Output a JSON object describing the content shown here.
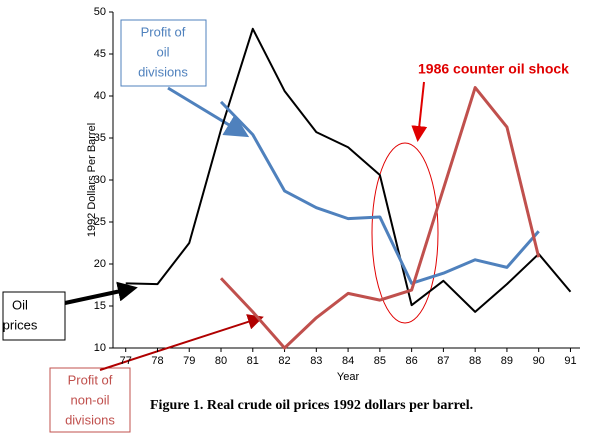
{
  "chart_data": {
    "type": "line",
    "y_label": "1992 Dollars Per Barrel",
    "x_label": "Year",
    "caption": "Figure 1. Real crude oil prices 1992 dollars per barrel.",
    "xlim": [
      76.6,
      91.3
    ],
    "xticks": [
      77,
      78,
      79,
      80,
      81,
      82,
      83,
      84,
      85,
      86,
      87,
      88,
      89,
      90,
      91
    ],
    "ylim": [
      10,
      50
    ],
    "yticks": [
      10,
      15,
      20,
      25,
      30,
      35,
      40,
      45,
      50
    ],
    "series": [
      {
        "color": "#000000",
        "x": [
          77,
          78,
          79,
          80,
          81,
          82,
          83,
          84,
          85,
          86,
          87,
          88,
          89,
          90,
          91
        ],
        "values": [
          17.7,
          17.6,
          22.5,
          36,
          48,
          40.6,
          35.7,
          33.9,
          30.6,
          15.1,
          18,
          14.3,
          17.6,
          21.2,
          16.7
        ]
      },
      {
        "color": "#4f81bd",
        "x": [
          80,
          81,
          82,
          83,
          84,
          85,
          86,
          87,
          88,
          89,
          90
        ],
        "values": [
          39.3,
          35.4,
          28.7,
          26.7,
          25.4,
          25.6,
          17.7,
          18.9,
          20.5,
          19.6,
          23.9
        ]
      },
      {
        "color": "#c0504d",
        "x": [
          80,
          81,
          82,
          83,
          84,
          85,
          86,
          88,
          89,
          90
        ],
        "values": [
          18.3,
          14.3,
          10,
          13.6,
          16.5,
          15.7,
          16.9,
          41,
          36.3,
          20.8
        ]
      }
    ],
    "annotations": {
      "oil_divisions": [
        "Profit of",
        "oil",
        "divisions"
      ],
      "counter_shock": "1986 counter oil shock",
      "oil_prices": [
        "Oil",
        "prices"
      ],
      "non_oil_divisions": [
        "Profit of",
        "non-oil",
        "divisions"
      ]
    }
  }
}
